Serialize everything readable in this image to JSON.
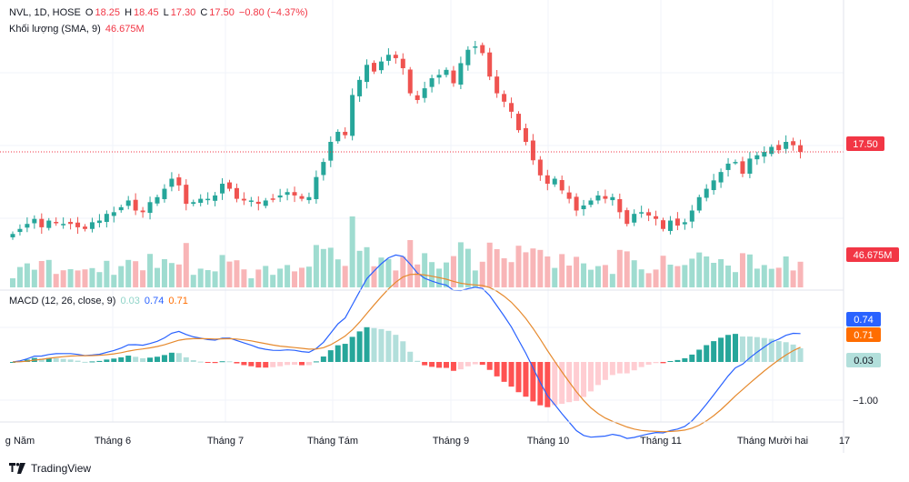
{
  "header": {
    "symbol": "NVL, 1D, HOSE",
    "open_label": "O",
    "open": "18.25",
    "high_label": "H",
    "high": "18.45",
    "low_label": "L",
    "low": "17.30",
    "close_label": "C",
    "close": "17.50",
    "change": "−0.80 (−4.37%)"
  },
  "volume_legend": {
    "label": "Khối lượng (SMA, 9)",
    "value": "46.675M"
  },
  "macd_legend": {
    "label": "MACD (12, 26, close, 9)",
    "hist": "0.03",
    "macd": "0.74",
    "signal": "0.71"
  },
  "footer": {
    "brand": "TradingView"
  },
  "colors": {
    "up": "#26a69a",
    "down": "#ef5350",
    "macd": "#2962ff",
    "signal": "#e68a2e"
  },
  "chart_data": {
    "type": "candlestick",
    "price": {
      "last": 17.5,
      "last_label": "17.50"
    },
    "volume": {
      "last_label": "46.675M"
    },
    "macd": {
      "hist_label": "0.03",
      "macd_label": "0.74",
      "signal_label": "0.71",
      "axis_labels": [
        "−1.00"
      ]
    },
    "x_labels": [
      "g Năm",
      "Tháng 6",
      "Tháng 7",
      "Tháng Tám",
      "Tháng 9",
      "Tháng 10",
      "Tháng 11",
      "Tháng Mười hai",
      "17"
    ],
    "closes": [
      12.6,
      12.9,
      13.2,
      13.5,
      13.0,
      13.4,
      13.3,
      13.2,
      13.2,
      13.0,
      12.9,
      13.3,
      13.4,
      13.8,
      13.9,
      14.2,
      14.6,
      14.0,
      13.9,
      14.5,
      14.8,
      15.3,
      15.9,
      15.5,
      14.4,
      14.5,
      14.7,
      14.7,
      14.9,
      15.6,
      15.3,
      14.7,
      14.6,
      14.6,
      14.4,
      14.6,
      14.7,
      14.9,
      15.1,
      14.9,
      14.7,
      14.8,
      16.0,
      16.9,
      18.1,
      18.7,
      18.5,
      20.9,
      21.8,
      22.7,
      22.3,
      22.9,
      23.3,
      23.1,
      22.5,
      21.0,
      20.6,
      21.3,
      21.9,
      22.1,
      22.4,
      21.6,
      22.8,
      23.6,
      23.8,
      23.4,
      22.0,
      21.0,
      20.5,
      19.9,
      18.8,
      18.1,
      17.0,
      16.1,
      15.6,
      15.9,
      15.2,
      14.7,
      14.0,
      14.3,
      14.6,
      14.9,
      14.7,
      14.8,
      13.9,
      13.2,
      13.8,
      13.9,
      13.7,
      13.5,
      12.9,
      13.4,
      13.1,
      13.3,
      14.0,
      14.8,
      15.3,
      15.8,
      16.3,
      16.8,
      16.9,
      16.2,
      17.1,
      17.3,
      17.5,
      17.8,
      17.6,
      18.1,
      17.9,
      17.5
    ]
  }
}
